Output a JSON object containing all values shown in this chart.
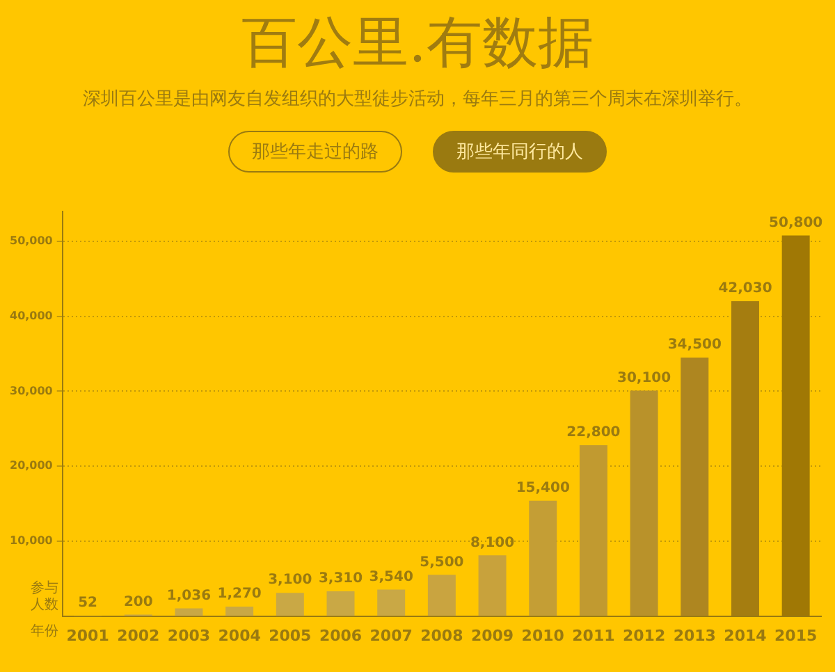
{
  "chart_data": {
    "type": "bar",
    "title": "百公里.有数据",
    "subtitle": "深圳百公里是由网友自发组织的大型徒步活动，每年三月的第三个周末在深圳举行。",
    "annotations": [
      "那些年走过的路",
      "那些年同行的人"
    ],
    "xlabel": "年份",
    "ylabel": "参与人数",
    "categories": [
      "2001",
      "2002",
      "2003",
      "2004",
      "2005",
      "2006",
      "2007",
      "2008",
      "2009",
      "2010",
      "2011",
      "2012",
      "2013",
      "2014",
      "2015"
    ],
    "values": [
      52,
      200,
      1036,
      1270,
      3100,
      3310,
      3540,
      5500,
      8100,
      15400,
      22800,
      30100,
      34500,
      42030,
      50800
    ],
    "colors": [
      "#c9a845",
      "#c9a845",
      "#c9a845",
      "#c9a845",
      "#c9a845",
      "#c9a845",
      "#c9a845",
      "#c9a440",
      "#c8a23c",
      "#c49e35",
      "#c19a30",
      "#b9922a",
      "#ae8620",
      "#a57d10",
      "#a07805"
    ],
    "ylim": [
      0,
      54000
    ],
    "yticks": [
      {
        "value": 10000,
        "label": "10,000"
      },
      {
        "value": 20000,
        "label": "20,000"
      },
      {
        "value": 30000,
        "label": "30,000"
      },
      {
        "value": 40000,
        "label": "40,000"
      },
      {
        "value": 50000,
        "label": "50,000"
      }
    ],
    "value_labels": [
      "52",
      "200",
      "1,036",
      "1,270",
      "3,100",
      "3,310",
      "3,540",
      "5,500",
      "8,100",
      "15,400",
      "22,800",
      "30,100",
      "34,500",
      "42,030",
      "50,800"
    ],
    "grid": "y",
    "legend": false
  }
}
